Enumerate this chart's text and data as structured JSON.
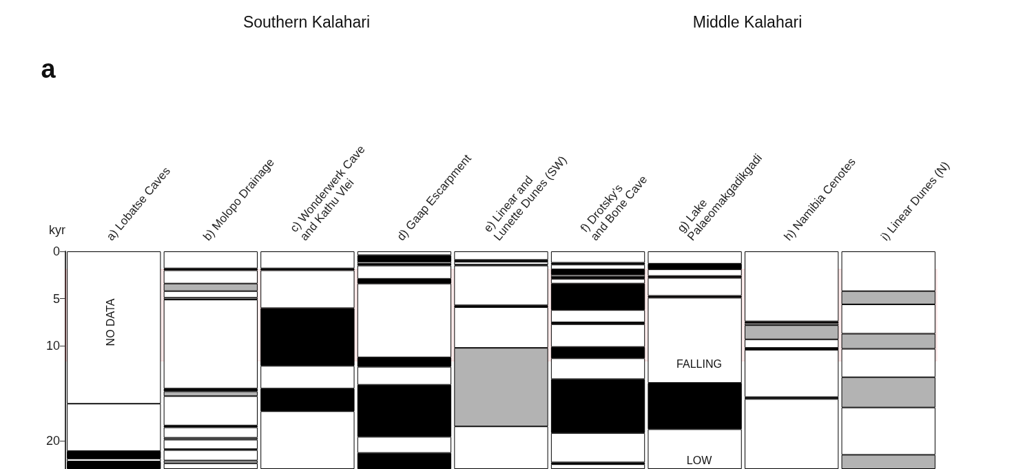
{
  "chart_data": {
    "type": "bar",
    "stacked": true,
    "ylabel": "kyr",
    "ylim": [
      23,
      0
    ],
    "yticks": [
      0,
      5,
      10,
      20
    ],
    "categories": [
      "a) Lobatse Caves",
      "b) Molopo Drainage",
      "c) Wonderwerk Cave and Kathu Vlei",
      "d) Gaap Escarpment",
      "e) Linear and Lunette Dunes (SW)",
      "f) Drotsky's and Bone Cave",
      "g) Lake Palaeomakgadikgadi",
      "h) Namibia Cenotes",
      "i) Linear Dunes (N)"
    ],
    "series": [
      {
        "values": [
          16.1,
          1.8,
          1.8,
          0.4,
          0.9,
          1.2,
          1.3,
          7.4,
          4.2
        ],
        "colors": [
          "#ffffff",
          "#ffffff",
          "#ffffff",
          "#ffffff",
          "#ffffff",
          "#ffffff",
          "#ffffff",
          "#ffffff",
          "#ffffff"
        ]
      },
      {
        "values": [
          5.0,
          0.2,
          0.2,
          0.7,
          0.2,
          0.2,
          0.6,
          0.2,
          1.4
        ],
        "colors": [
          "#ffffff",
          "#000000",
          "#000000",
          "#000000",
          "#000000",
          "#000000",
          "#000000",
          "#000000",
          "#b3b3b3"
        ]
      },
      {
        "values": [
          0.8,
          1.4,
          4.0,
          0.2,
          0.3,
          0.5,
          0.7,
          0.2,
          3.1
        ],
        "colors": [
          "#000000",
          "#ffffff",
          "#ffffff",
          "#ffffff",
          "#ffffff",
          "#ffffff",
          "#ffffff",
          "#ffffff",
          "#ffffff"
        ]
      },
      {
        "values": [
          0.3,
          0.8,
          6.1,
          0.2,
          0.1,
          0.6,
          0.2,
          1.5,
          1.6
        ],
        "colors": [
          "#ffffff",
          "#b3b3b3",
          "#000000",
          "#000000",
          "#000000",
          "#000000",
          "#000000",
          "#b3b3b3",
          "#b3b3b3"
        ]
      },
      {
        "values": [
          0.8,
          0.7,
          2.4,
          1.4,
          4.2,
          0.2,
          1.9,
          0.9,
          3.0
        ],
        "colors": [
          "#000000",
          "#ffffff",
          "#ffffff",
          "#ffffff",
          "#ffffff",
          "#ffffff",
          "#ffffff",
          "#ffffff",
          "#ffffff"
        ]
      },
      {
        "values": [
          null,
          0.2,
          2.4,
          0.5,
          0.2,
          0.2,
          0.2,
          0.2,
          3.2
        ],
        "colors": [
          null,
          "#b3b3b3",
          "#000000",
          "#000000",
          "#000000",
          "#000000",
          "#000000",
          "#000000",
          "#b3b3b3"
        ]
      },
      {
        "values": [
          null,
          9.4,
          6.1,
          7.8,
          4.3,
          0.5,
          9.0,
          5.0,
          5.0
        ],
        "colors": [
          null,
          "#ffffff",
          "#ffffff",
          "#ffffff",
          "#ffffff",
          "#ffffff",
          "#ffffff",
          "#ffffff",
          "#ffffff"
        ]
      },
      {
        "values": [
          null,
          0.3,
          null,
          1.0,
          8.3,
          2.8,
          4.9,
          0.2,
          1.5
        ],
        "colors": [
          null,
          "#000000",
          null,
          "#000000",
          "#b3b3b3",
          "#000000",
          "#000000",
          "#000000",
          "#b3b3b3"
        ]
      },
      {
        "values": [
          null,
          0.5,
          null,
          1.9,
          4.5,
          1.3,
          4.2,
          7.4,
          null
        ],
        "colors": [
          null,
          "#b3b3b3",
          null,
          "#ffffff",
          "#ffffff",
          "#ffffff",
          "#ffffff",
          "#ffffff",
          null
        ]
      },
      {
        "values": [
          null,
          3.1,
          null,
          5.5,
          null,
          0.2,
          null,
          null,
          null
        ],
        "colors": [
          null,
          "#ffffff",
          null,
          "#000000",
          null,
          "#000000",
          null,
          null,
          null
        ]
      },
      {
        "values": [
          null,
          0.2,
          null,
          1.7,
          null,
          2.4,
          null,
          null,
          null
        ],
        "colors": [
          null,
          "#000000",
          null,
          "#ffffff",
          null,
          "#ffffff",
          null,
          null,
          null
        ]
      },
      {
        "values": [
          null,
          1.1,
          null,
          1.7,
          null,
          1.2,
          null,
          null,
          null
        ],
        "colors": [
          null,
          "#ffffff",
          null,
          "#000000",
          null,
          "#000000",
          null,
          null,
          null
        ]
      },
      {
        "values": [
          null,
          0.2,
          null,
          null,
          null,
          2.2,
          null,
          null,
          null
        ],
        "colors": [
          null,
          "#b3b3b3",
          null,
          null,
          null,
          "#ffffff",
          null,
          null,
          null
        ]
      },
      {
        "values": [
          null,
          1.0,
          null,
          null,
          null,
          5.7,
          null,
          null,
          null
        ],
        "colors": [
          null,
          "#ffffff",
          null,
          null,
          null,
          "#000000",
          null,
          null,
          null
        ]
      },
      {
        "values": [
          null,
          0.1,
          null,
          null,
          null,
          3.1,
          null,
          null,
          null
        ],
        "colors": [
          null,
          "#000000",
          null,
          null,
          null,
          "#ffffff",
          null,
          null,
          null
        ]
      },
      {
        "values": [
          null,
          1.1,
          null,
          null,
          null,
          0.2,
          null,
          null,
          null
        ],
        "colors": [
          null,
          "#ffffff",
          null,
          null,
          null,
          "#000000",
          null,
          null,
          null
        ]
      },
      {
        "values": [
          null,
          0.3,
          null,
          null,
          null,
          0.5,
          null,
          null,
          null
        ],
        "colors": [
          null,
          "#b3b3b3",
          null,
          null,
          null,
          "#ffffff",
          null,
          null,
          null
        ]
      },
      {
        "values": [
          null,
          0.6,
          null,
          null,
          null,
          null,
          null,
          null,
          null
        ],
        "colors": [
          null,
          "#ffffff",
          null,
          null,
          null,
          null,
          null,
          null,
          null
        ]
      }
    ],
    "bands": [
      {
        "axis": "y",
        "from": 1.9,
        "to": 11.6,
        "color": "#ff0000"
      }
    ],
    "annotations": [
      "a",
      "Southern Kalahari",
      "Middle Kalahari",
      "NO DATA",
      "FALLING",
      "LOW"
    ]
  }
}
